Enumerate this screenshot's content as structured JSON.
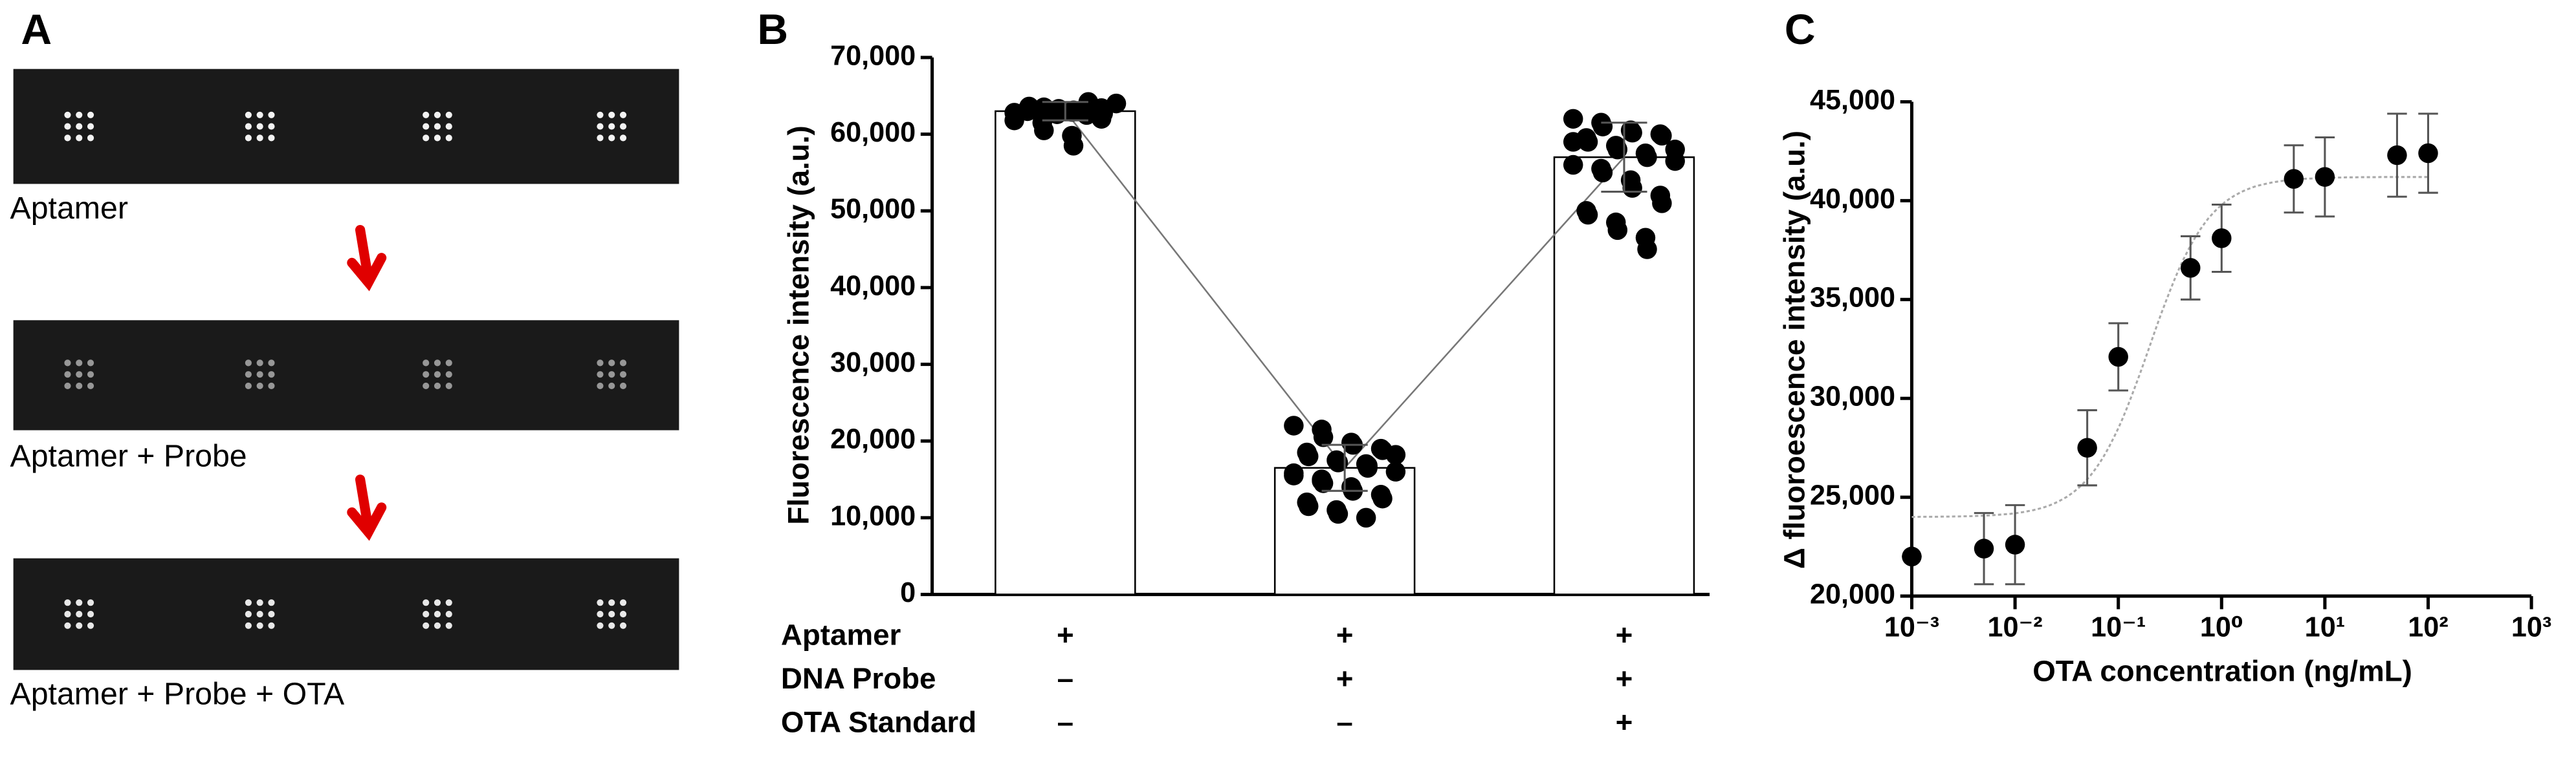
{
  "panel_a": {
    "label": "A",
    "captions": [
      "Aptamer",
      "Aptamer + Probe",
      "Aptamer + Probe + OTA"
    ]
  },
  "chart_data": [
    {
      "type": "bar",
      "label": "B",
      "ylabel": "Fluorescence intensity (a.u.)",
      "categories": [
        null,
        null,
        null
      ],
      "conditions": [
        {
          "name": "Aptamer",
          "marks": [
            "+",
            "+",
            "+"
          ]
        },
        {
          "name": "DNA Probe",
          "marks": [
            "–",
            "+",
            "+"
          ]
        },
        {
          "name": "OTA Standard",
          "marks": [
            "–",
            "–",
            "+"
          ]
        }
      ],
      "values": [
        63000,
        16500,
        57000
      ],
      "errors": [
        1200,
        3000,
        4500
      ],
      "points": [
        [
          62800,
          63200,
          63500,
          62900,
          63100,
          63400,
          62700,
          63000,
          63600,
          62600,
          63300,
          62500,
          64200,
          64000,
          61800,
          61500,
          60500,
          59800,
          58500,
          62000,
          63000,
          63200
        ],
        [
          22000,
          21500,
          20500,
          19800,
          19500,
          19000,
          18800,
          18500,
          18000,
          17500,
          17200,
          17000,
          16500,
          16000,
          15500,
          15000,
          14500,
          14000,
          13500,
          13000,
          12500,
          12000,
          11500,
          11000,
          10500,
          10000,
          16800,
          18200,
          15800,
          14800
        ],
        [
          62000,
          61500,
          61000,
          60500,
          60200,
          60000,
          59800,
          59500,
          59000,
          58500,
          58000,
          57500,
          57000,
          56500,
          56000,
          55500,
          55000,
          54000,
          53000,
          52000,
          51000,
          50000,
          49500,
          48500,
          47500,
          46500,
          45000,
          58000,
          59000
        ]
      ],
      "color": "#000000",
      "bar_fill": "#ffffff",
      "line_color": "#777777",
      "ylim": [
        0,
        70000
      ],
      "yticks": [
        0,
        {
          "value": 10000,
          "label": "10,000"
        },
        {
          "value": 20000,
          "label": "20,000"
        },
        {
          "value": 30000,
          "label": "30,000"
        },
        {
          "value": 40000,
          "label": "40,000"
        },
        {
          "value": 50000,
          "label": "50,000"
        },
        {
          "value": 60000,
          "label": "60,000"
        },
        {
          "value": 70000,
          "label": "70,000"
        }
      ]
    },
    {
      "type": "scatter",
      "label": "C",
      "xlabel": "OTA concentration (ng/mL)",
      "ylabel": "Δ fluoroescence intensity (a.u.)",
      "x_log": true,
      "color": "#000000",
      "fit_color": "#aaaaaa",
      "x": [
        0.001,
        0.005,
        0.01,
        0.05,
        0.1,
        0.5,
        1,
        5,
        10,
        50,
        100
      ],
      "values": [
        22000,
        22400,
        22600,
        27500,
        32100,
        36600,
        38100,
        41100,
        41200,
        42300,
        42400
      ],
      "errors": [
        0,
        1800,
        2000,
        1900,
        1700,
        1600,
        1700,
        1700,
        2000,
        2100,
        2000
      ],
      "fit": {
        "bottom": 24000,
        "top": 41200,
        "ec50": 0.2,
        "hill": 1.5
      },
      "xlim": [
        0.001,
        1000
      ],
      "xticks": [
        {
          "value": 0.001,
          "label": "10⁻³"
        },
        {
          "value": 0.01,
          "label": "10⁻²"
        },
        {
          "value": 0.1,
          "label": "10⁻¹"
        },
        {
          "value": 1,
          "label": "10⁰"
        },
        {
          "value": 10,
          "label": "10¹"
        },
        {
          "value": 100,
          "label": "10²"
        },
        {
          "value": 1000,
          "label": "10³"
        }
      ],
      "ylim": [
        20000,
        45000
      ],
      "yticks": [
        {
          "value": 20000,
          "label": "20,000"
        },
        {
          "value": 25000,
          "label": "25,000"
        },
        {
          "value": 30000,
          "label": "30,000"
        },
        {
          "value": 35000,
          "label": "35,000"
        },
        {
          "value": 40000,
          "label": "40,000"
        },
        {
          "value": 45000,
          "label": "45,000"
        }
      ]
    }
  ]
}
